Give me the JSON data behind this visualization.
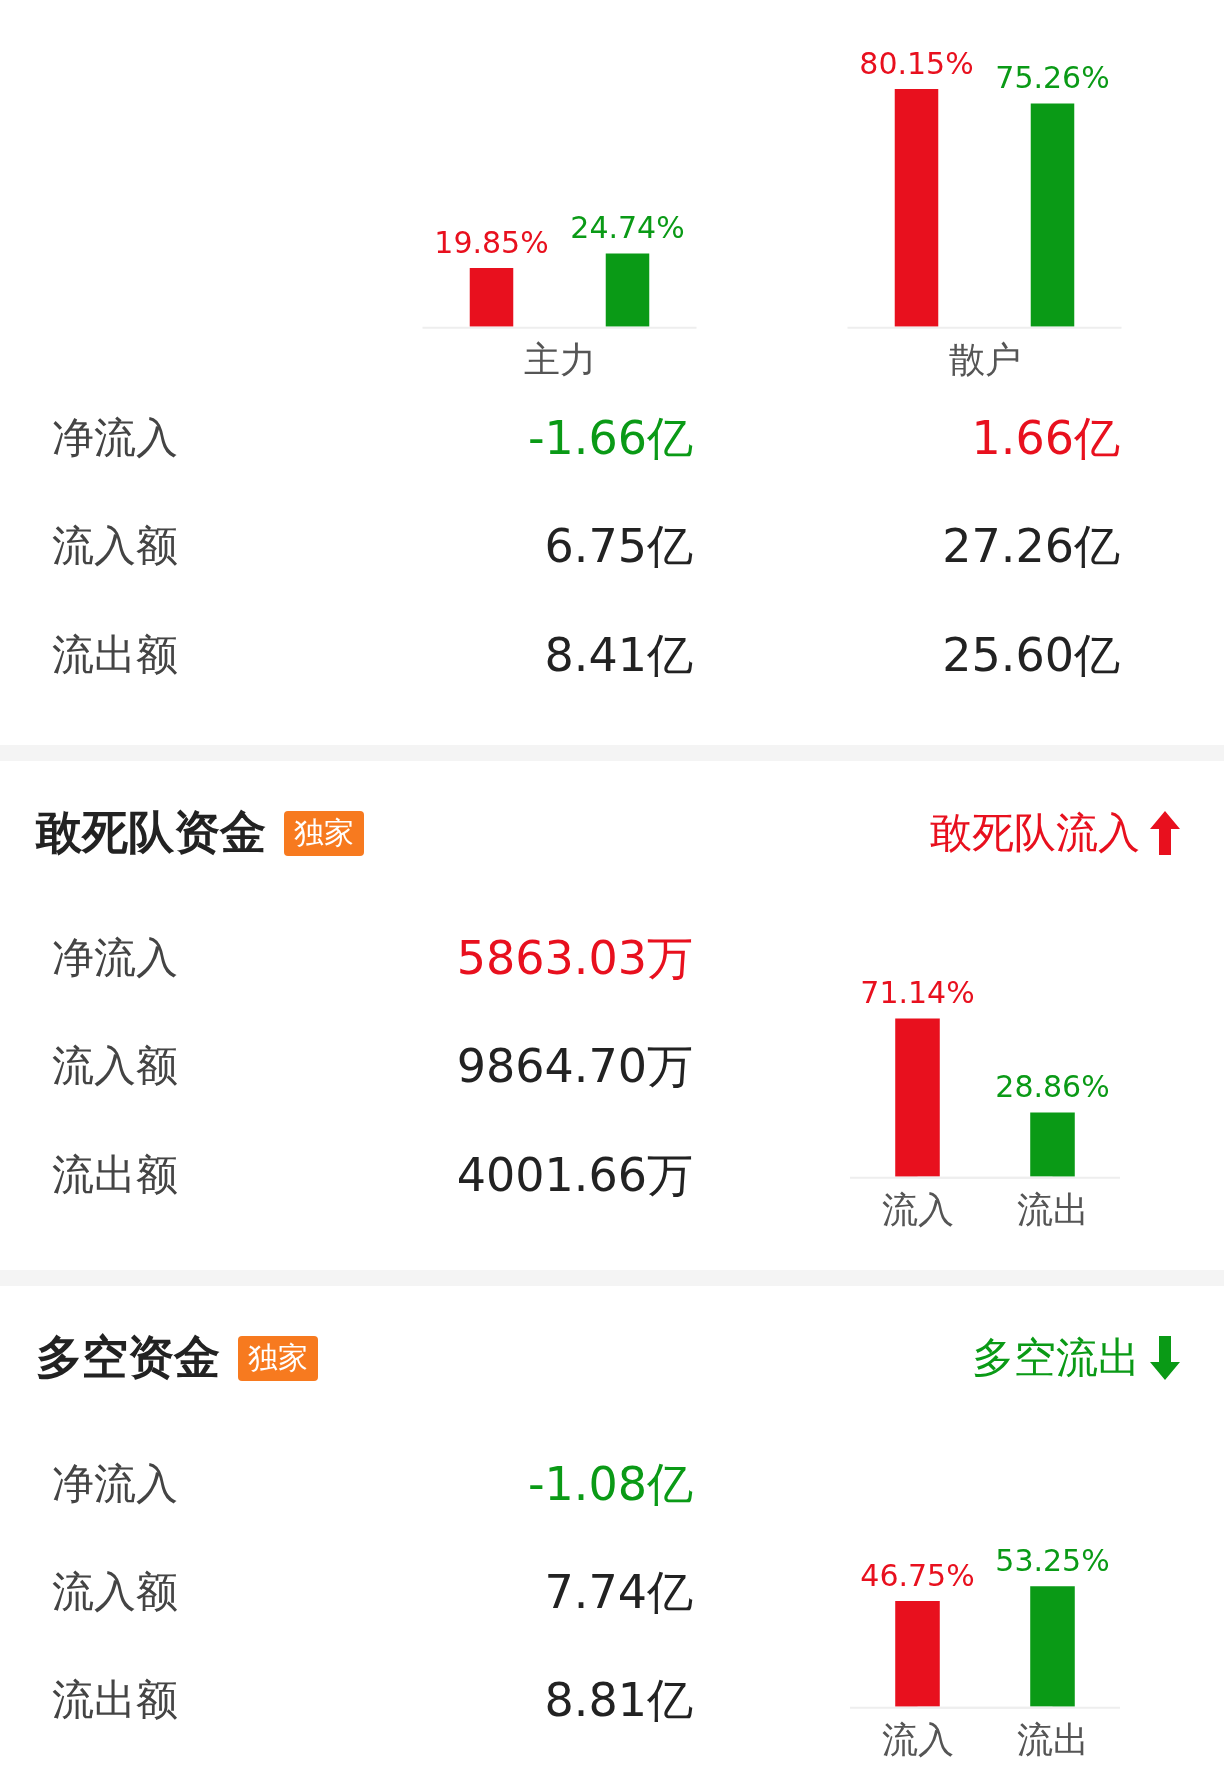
{
  "chart_data": [
    {
      "type": "bar",
      "categories": [
        "主力",
        "散户"
      ],
      "series": [
        {
          "color": "#e8101e",
          "values": [
            19.85,
            80.15
          ],
          "value_labels": [
            "19.85%",
            "80.15%"
          ]
        },
        {
          "color": "#0a9a16",
          "values": [
            24.74,
            75.26
          ],
          "value_labels": [
            "24.74%",
            "75.26%"
          ]
        }
      ]
    },
    {
      "type": "other",
      "categories": [
        "净流入",
        "流入额",
        "流出额"
      ],
      "series": [
        {
          "values": [
            -1.66,
            6.75,
            8.41
          ],
          "value_labels": [
            "-1.66亿",
            "6.75亿",
            "8.41亿"
          ],
          "colors": [
            "#0a9a16",
            "#222222",
            "#222222"
          ]
        },
        {
          "values": [
            1.66,
            27.26,
            25.6
          ],
          "value_labels": [
            "1.66亿",
            "27.26亿",
            "25.60亿"
          ],
          "colors": [
            "#e8101e",
            "#222222",
            "#222222"
          ]
        }
      ]
    },
    {
      "type": "other",
      "title": "敢死队资金",
      "annotations": [
        "独家",
        "敢死队流入"
      ],
      "color": "#e8101e",
      "categories": [
        "净流入",
        "流入额",
        "流出额"
      ],
      "series": [
        {
          "values": [
            5863.03,
            9864.7,
            4001.66
          ],
          "value_labels": [
            "5863.03万",
            "9864.70万",
            "4001.66万"
          ],
          "colors": [
            "#e8101e",
            "#222222",
            "#222222"
          ]
        }
      ]
    },
    {
      "type": "bar",
      "categories": [
        "流入",
        "流出"
      ],
      "values": [
        71.14,
        28.86
      ],
      "colors": [
        "#e8101e",
        "#0a9a16"
      ],
      "value_labels": [
        "71.14%",
        "28.86%"
      ]
    },
    {
      "type": "other",
      "title": "多空资金",
      "annotations": [
        "独家",
        "多空流出"
      ],
      "color": "#0a9a16",
      "categories": [
        "净流入",
        "流入额",
        "流出额"
      ],
      "series": [
        {
          "values": [
            -1.08,
            7.74,
            8.81
          ],
          "value_labels": [
            "-1.08亿",
            "7.74亿",
            "8.81亿"
          ],
          "colors": [
            "#0a9a16",
            "#222222",
            "#222222"
          ]
        }
      ]
    },
    {
      "type": "bar",
      "categories": [
        "流入",
        "流出"
      ],
      "values": [
        46.75,
        53.25
      ],
      "colors": [
        "#e8101e",
        "#0a9a16"
      ],
      "value_labels": [
        "46.75%",
        "53.25%"
      ]
    }
  ]
}
